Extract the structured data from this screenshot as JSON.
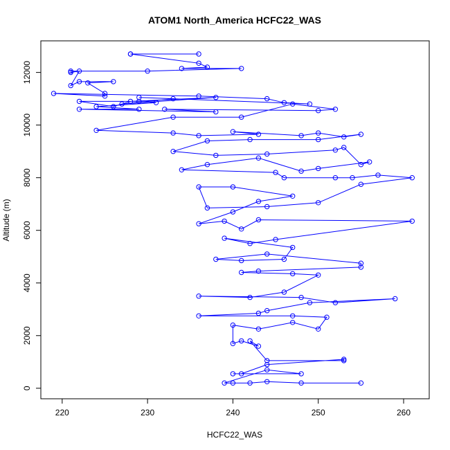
{
  "chart_data": {
    "type": "line",
    "title": "ATOM1 North_America HCFC22_WAS",
    "xlabel": "HCFC22_WAS",
    "ylabel": "Altitude (m)",
    "xlim": [
      217.5,
      263
    ],
    "ylim": [
      -400,
      13200
    ],
    "xticks": [
      220,
      230,
      240,
      250,
      260
    ],
    "yticks": [
      0,
      2000,
      4000,
      6000,
      8000,
      10000,
      12000
    ],
    "grid": false,
    "legend": "none",
    "color": "#0000ff",
    "series": [
      {
        "markers": "open-circle",
        "points": [
          [
            228,
            12700
          ],
          [
            236,
            12700
          ],
          [
            228,
            12700
          ],
          [
            236,
            12350
          ],
          [
            237,
            12200
          ],
          [
            234,
            12150
          ],
          [
            241,
            12150
          ],
          [
            230,
            12050
          ],
          [
            221,
            12050
          ],
          [
            221,
            12000
          ],
          [
            222,
            12050
          ],
          [
            221,
            11500
          ],
          [
            222,
            11650
          ],
          [
            226,
            11650
          ],
          [
            223,
            11600
          ],
          [
            225,
            11200
          ],
          [
            225,
            11100
          ],
          [
            219,
            11200
          ],
          [
            236,
            11100
          ],
          [
            244,
            11000
          ],
          [
            246,
            10850
          ],
          [
            249,
            10800
          ],
          [
            229,
            11050
          ],
          [
            233,
            11000
          ],
          [
            227,
            10800
          ],
          [
            238,
            11050
          ],
          [
            228,
            10900
          ],
          [
            226,
            10700
          ],
          [
            222,
            10900
          ],
          [
            229,
            10900
          ],
          [
            231,
            10850
          ],
          [
            224,
            10700
          ],
          [
            229,
            10600
          ],
          [
            222,
            10600
          ],
          [
            238,
            10500
          ],
          [
            232,
            10600
          ],
          [
            250,
            10550
          ],
          [
            252,
            10600
          ],
          [
            247,
            10800
          ],
          [
            241,
            10300
          ],
          [
            233,
            10300
          ],
          [
            224,
            9800
          ],
          [
            233,
            9700
          ],
          [
            236,
            9600
          ],
          [
            243,
            9650
          ],
          [
            240,
            9750
          ],
          [
            248,
            9600
          ],
          [
            250,
            9700
          ],
          [
            253,
            9550
          ],
          [
            255,
            9650
          ],
          [
            250,
            9450
          ],
          [
            242,
            9450
          ],
          [
            237,
            9400
          ],
          [
            233,
            9000
          ],
          [
            238,
            8850
          ],
          [
            244,
            8900
          ],
          [
            252,
            9050
          ],
          [
            253,
            9150
          ],
          [
            255,
            8500
          ],
          [
            256,
            8600
          ],
          [
            250,
            8350
          ],
          [
            248,
            8250
          ],
          [
            243,
            8750
          ],
          [
            237,
            8500
          ],
          [
            234,
            8300
          ],
          [
            245,
            8200
          ],
          [
            246,
            8000
          ],
          [
            252,
            8000
          ],
          [
            254,
            8000
          ],
          [
            257,
            8100
          ],
          [
            261,
            8000
          ],
          [
            255,
            7750
          ],
          [
            250,
            7050
          ],
          [
            244,
            6900
          ],
          [
            237,
            6850
          ],
          [
            236,
            7650
          ],
          [
            240,
            7650
          ],
          [
            247,
            7300
          ],
          [
            243,
            7100
          ],
          [
            240,
            6700
          ],
          [
            236,
            6250
          ],
          [
            239,
            6350
          ],
          [
            241,
            6050
          ],
          [
            243,
            6400
          ],
          [
            261,
            6350
          ],
          [
            245,
            5650
          ],
          [
            242,
            5500
          ],
          [
            239,
            5700
          ],
          [
            247,
            5350
          ],
          [
            246,
            4900
          ],
          [
            241,
            4850
          ],
          [
            238,
            4900
          ],
          [
            244,
            5100
          ],
          [
            255,
            4750
          ],
          [
            255,
            4600
          ],
          [
            243,
            4450
          ],
          [
            241,
            4400
          ],
          [
            247,
            4350
          ],
          [
            250,
            4300
          ],
          [
            246,
            3650
          ],
          [
            242,
            3450
          ],
          [
            236,
            3500
          ],
          [
            248,
            3450
          ],
          [
            252,
            3250
          ],
          [
            259,
            3400
          ],
          [
            249,
            3250
          ],
          [
            244,
            2950
          ],
          [
            243,
            2850
          ],
          [
            236,
            2750
          ],
          [
            247,
            2750
          ],
          [
            251,
            2700
          ],
          [
            250,
            2250
          ],
          [
            247,
            2500
          ],
          [
            243,
            2250
          ],
          [
            240,
            2400
          ],
          [
            240,
            1700
          ],
          [
            241,
            1800
          ],
          [
            243,
            1600
          ],
          [
            242,
            1800
          ],
          [
            244,
            1050
          ],
          [
            253,
            1050
          ],
          [
            253,
            1100
          ],
          [
            244,
            900
          ],
          [
            241,
            550
          ],
          [
            240,
            550
          ],
          [
            248,
            550
          ],
          [
            244,
            700
          ],
          [
            239,
            200
          ],
          [
            240,
            200
          ],
          [
            242,
            200
          ],
          [
            244,
            250
          ],
          [
            248,
            200
          ],
          [
            255,
            200
          ]
        ]
      }
    ]
  }
}
